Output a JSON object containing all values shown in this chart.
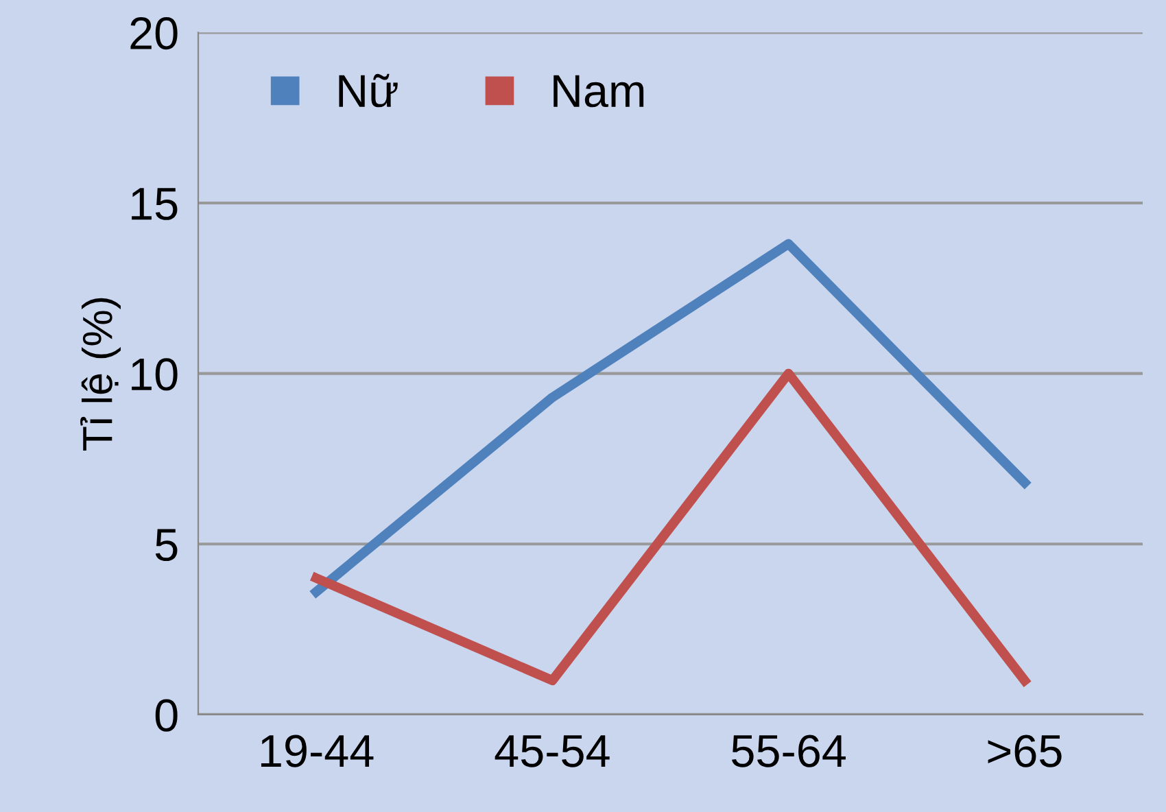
{
  "chart_data": {
    "type": "line",
    "ylabel": "Tỉ lệ (%)",
    "categories": [
      "19-44",
      "45-54",
      "55-64",
      ">65"
    ],
    "series": [
      {
        "name": "Nữ",
        "color": "#4f81bd",
        "values": [
          3.6,
          9.3,
          13.8,
          6.8
        ]
      },
      {
        "name": "Nam",
        "color": "#c0504d",
        "values": [
          4,
          1,
          10,
          1
        ]
      }
    ],
    "ylim": [
      0,
      20
    ],
    "yticks": [
      0,
      5,
      10,
      15,
      20
    ],
    "grid": "y",
    "legend": "top left",
    "marker": "none",
    "line_style": "solid"
  }
}
